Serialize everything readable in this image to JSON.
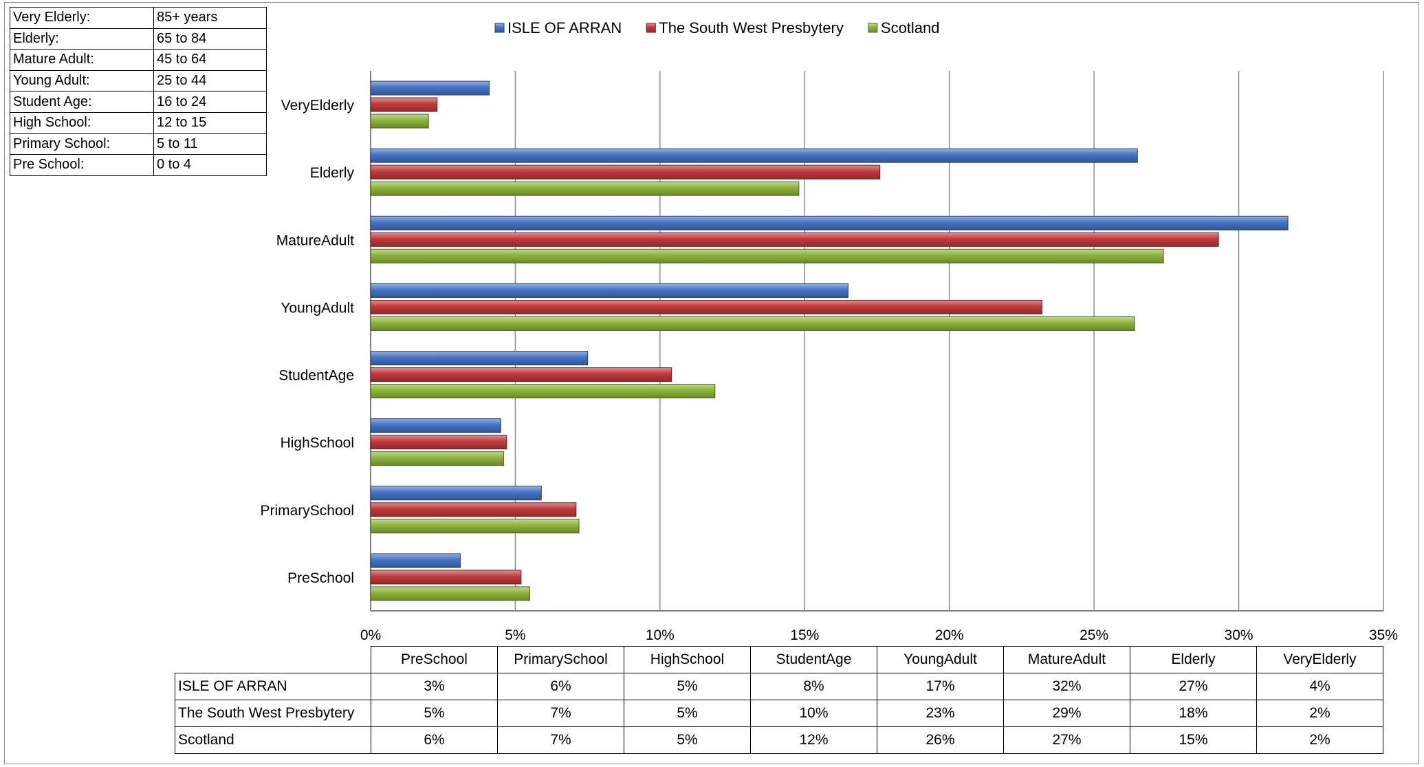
{
  "age_groups": [
    {
      "label": "Very Elderly:",
      "range": "85+ years"
    },
    {
      "label": "Elderly:",
      "range": "65 to 84"
    },
    {
      "label": "Mature Adult:",
      "range": "45 to 64"
    },
    {
      "label": "Young Adult:",
      "range": "25 to 44"
    },
    {
      "label": "Student Age:",
      "range": "16 to 24"
    },
    {
      "label": "High School:",
      "range": "12 to 15"
    },
    {
      "label": "Primary School:",
      "range": "5 to 11"
    },
    {
      "label": "Pre School:",
      "range": "0 to 4"
    }
  ],
  "chart_data": {
    "type": "bar",
    "orientation": "horizontal",
    "categories": [
      "PreSchool",
      "PrimarySchool",
      "HighSchool",
      "StudentAge",
      "YoungAdult",
      "MatureAdult",
      "Elderly",
      "VeryElderly"
    ],
    "series": [
      {
        "name": "ISLE OF ARRAN",
        "color": "#4472c4",
        "values": [
          3.1,
          5.9,
          4.5,
          7.5,
          16.5,
          31.7,
          26.5,
          4.1
        ]
      },
      {
        "name": "The South West Presbytery",
        "color": "#c0393b",
        "values": [
          5.2,
          7.1,
          4.7,
          10.4,
          23.2,
          29.3,
          17.6,
          2.3
        ]
      },
      {
        "name": "Scotland",
        "color": "#8db43a",
        "values": [
          5.5,
          7.2,
          4.6,
          11.9,
          26.4,
          27.4,
          14.8,
          2.0
        ]
      }
    ],
    "table_values": [
      [
        "3%",
        "6%",
        "5%",
        "8%",
        "17%",
        "32%",
        "27%",
        "4%"
      ],
      [
        "5%",
        "7%",
        "5%",
        "10%",
        "23%",
        "29%",
        "18%",
        "2%"
      ],
      [
        "6%",
        "7%",
        "5%",
        "12%",
        "26%",
        "27%",
        "15%",
        "2%"
      ]
    ],
    "xlim": [
      0,
      35
    ],
    "xticks": [
      "0%",
      "5%",
      "10%",
      "15%",
      "20%",
      "25%",
      "30%",
      "35%"
    ],
    "grid": true,
    "legend_position": "top"
  }
}
